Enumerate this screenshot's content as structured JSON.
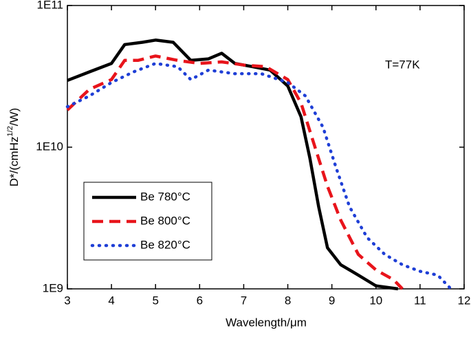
{
  "chart_data": {
    "type": "line",
    "x_label": "Wavelength/μm",
    "y_label": [
      "D*/(cmHz",
      "1/2",
      "/W)"
    ],
    "annotation": "T=77K",
    "log_y": true,
    "legend": "lower left",
    "xlim": [
      3,
      12
    ],
    "xticks": [
      3,
      4,
      5,
      6,
      7,
      8,
      9,
      10,
      11,
      12
    ],
    "ylim": [
      1000000000,
      100000000000
    ],
    "yticks": [
      {
        "value": 1000000000,
        "label": "1E9"
      },
      {
        "value": 10000000000,
        "label": "1E10"
      },
      {
        "value": 100000000000,
        "label": "1E11"
      }
    ],
    "series": [
      {
        "name": "Be 780°C",
        "color": "#000000",
        "dash": "solid",
        "x": [
          3.0,
          3.5,
          4.0,
          4.3,
          4.7,
          5.0,
          5.4,
          5.8,
          6.2,
          6.5,
          6.8,
          7.2,
          7.6,
          8.0,
          8.3,
          8.5,
          8.7,
          8.9,
          9.2,
          9.6,
          10.0,
          10.5
        ],
        "values": [
          29600000000,
          34000000000,
          39000000000,
          53000000000,
          55000000000,
          57000000000,
          55000000000,
          41000000000,
          42000000000,
          46000000000,
          39000000000,
          37000000000,
          35000000000,
          27000000000,
          16400000000,
          8400000000,
          3800000000,
          1950000000,
          1480000000,
          1250000000,
          1050000000,
          1000000000
        ]
      },
      {
        "name": "Be 800°C",
        "color": "#e8141b",
        "dash": "dashed",
        "x": [
          3.0,
          3.5,
          4.0,
          4.3,
          4.6,
          5.0,
          5.5,
          6.0,
          6.5,
          7.0,
          7.5,
          8.0,
          8.3,
          8.6,
          8.9,
          9.2,
          9.6,
          10.0,
          10.4,
          10.6
        ],
        "values": [
          18300000000,
          25600000000,
          30000000000,
          41000000000,
          41000000000,
          44000000000,
          41000000000,
          39000000000,
          40000000000,
          38000000000,
          37000000000,
          30000000000,
          20500000000,
          10400000000,
          5300000000,
          3060000000,
          1750000000,
          1360000000,
          1160000000,
          1000000000
        ]
      },
      {
        "name": "Be 820°C",
        "color": "#1f3fd6",
        "dash": "dotted",
        "x": [
          3.0,
          3.5,
          4.0,
          4.5,
          5.0,
          5.5,
          5.8,
          6.2,
          6.8,
          7.4,
          8.0,
          8.4,
          8.8,
          9.1,
          9.4,
          9.8,
          10.2,
          10.6,
          11.0,
          11.4,
          11.7
        ],
        "values": [
          19300000000,
          23000000000,
          28600000000,
          34000000000,
          39000000000,
          37000000000,
          30000000000,
          35000000000,
          33000000000,
          33000000000,
          28600000000,
          23000000000,
          13800000000,
          7100000000,
          3800000000,
          2300000000,
          1750000000,
          1480000000,
          1330000000,
          1250000000,
          1000000000
        ]
      }
    ]
  }
}
